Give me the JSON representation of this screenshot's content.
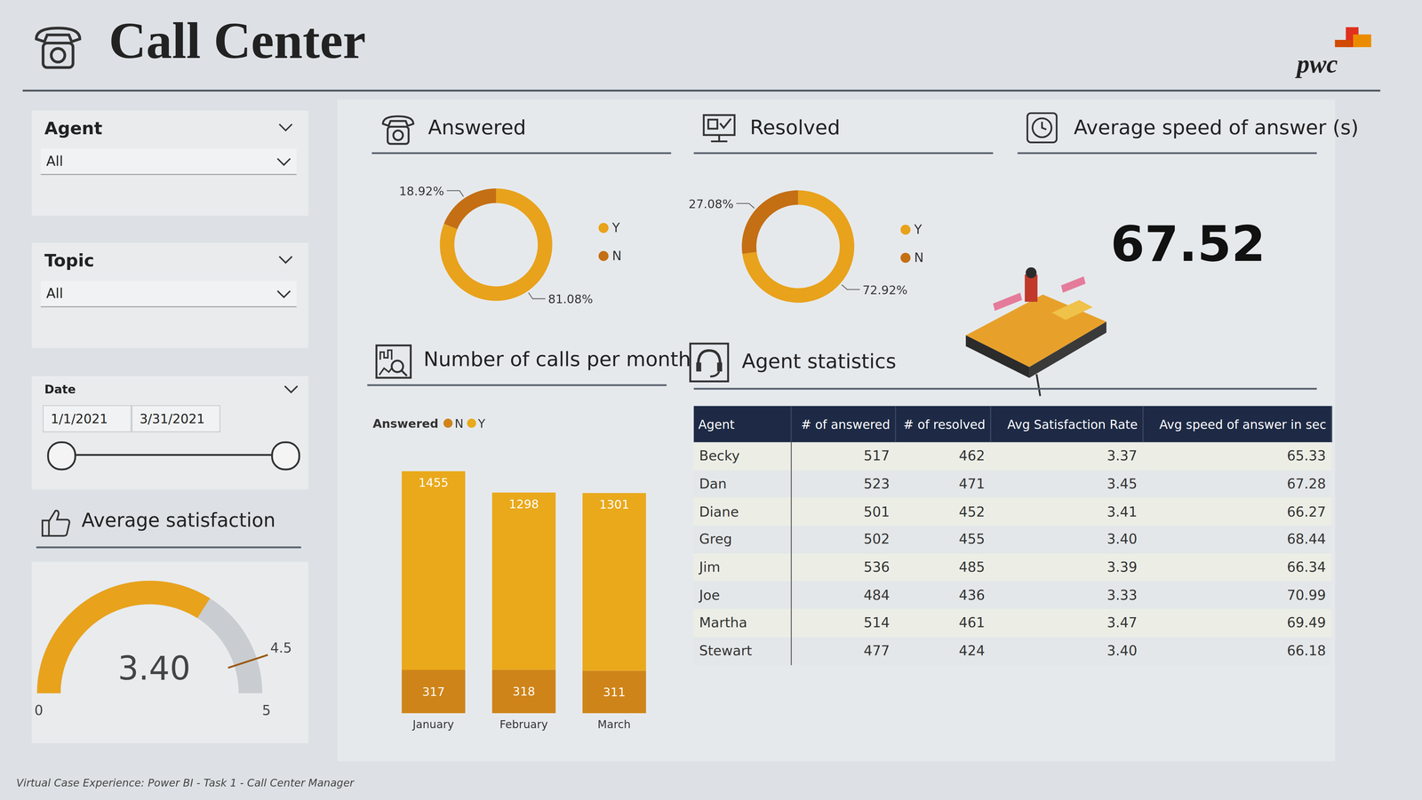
{
  "header": {
    "title": "Call Center",
    "logo": "pwc"
  },
  "filters": [
    {
      "label": "Agent",
      "value": "All"
    },
    {
      "label": "Topic",
      "value": "All"
    },
    {
      "label": "Date",
      "start": "1/1/2021",
      "end": "3/31/2021"
    }
  ],
  "chart_data": [
    {
      "type": "gauge",
      "title": "Average satisfaction",
      "value": 3.4,
      "value_label": "3.40",
      "min": 0,
      "max": 5,
      "target": 4.5,
      "color": "#e8a21c"
    },
    {
      "type": "pie",
      "title": "Answered",
      "categories": [
        "Y",
        "N"
      ],
      "values": [
        81.08,
        18.92
      ],
      "value_labels": [
        "81.08%",
        "18.92%"
      ],
      "colors": [
        "#e8a21c",
        "#c46f14"
      ],
      "legend": "right",
      "data_labels": true
    },
    {
      "type": "pie",
      "title": "Resolved",
      "categories": [
        "Y",
        "N"
      ],
      "values": [
        72.92,
        27.08
      ],
      "value_labels": [
        "72.92%",
        "27.08%"
      ],
      "colors": [
        "#e8a21c",
        "#c46f14"
      ],
      "legend": "right",
      "data_labels": true
    },
    {
      "type": "bar",
      "title": "Number of calls per month",
      "legend_title": "Answered",
      "categories": [
        "January",
        "February",
        "March"
      ],
      "series": [
        {
          "name": "N",
          "color": "#cf8419",
          "values": [
            317,
            318,
            311
          ]
        },
        {
          "name": "Y",
          "color": "#e9a91b",
          "values": [
            1455,
            1298,
            1301
          ]
        }
      ],
      "stacked": true,
      "data_labels": true,
      "tick_labels": "x",
      "legend": "top"
    }
  ],
  "kpi": {
    "title": "Average speed of answer (s)",
    "value": "67.52"
  },
  "table": {
    "title": "Agent statistics",
    "columns": [
      "Agent",
      "# of answered",
      "# of resolved",
      "Avg Satisfaction Rate",
      "Avg speed of answer in sec"
    ],
    "rows": [
      [
        "Becky",
        "517",
        "462",
        "3.37",
        "65.33"
      ],
      [
        "Dan",
        "523",
        "471",
        "3.45",
        "67.28"
      ],
      [
        "Diane",
        "501",
        "452",
        "3.41",
        "66.27"
      ],
      [
        "Greg",
        "502",
        "455",
        "3.40",
        "68.44"
      ],
      [
        "Jim",
        "536",
        "485",
        "3.39",
        "66.34"
      ],
      [
        "Joe",
        "484",
        "436",
        "3.33",
        "70.99"
      ],
      [
        "Martha",
        "514",
        "461",
        "3.47",
        "69.49"
      ],
      [
        "Stewart",
        "477",
        "424",
        "3.40",
        "66.18"
      ]
    ]
  },
  "footer": "Virtual Case Experience: Power BI - Task 1 - Call Center Manager"
}
